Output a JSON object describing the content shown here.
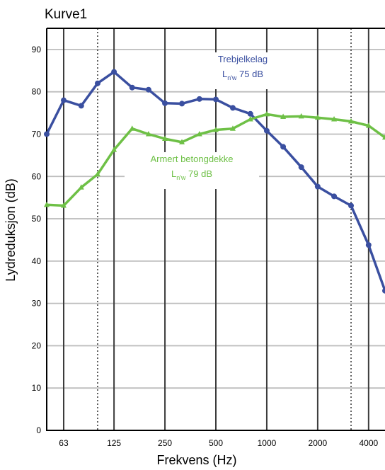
{
  "chart_data": {
    "type": "line",
    "title": "Kurve1",
    "xlabel": "Frekvens (Hz)",
    "ylabel": "Lydreduksjon (dB)",
    "x_scale": "log",
    "xlim": [
      50,
      5000
    ],
    "ylim": [
      0,
      95
    ],
    "grid": true,
    "x_tick_labels": [
      "63",
      "125",
      "250",
      "500",
      "1000",
      "2000",
      "4000"
    ],
    "x_tick_values": [
      63,
      125,
      250,
      500,
      1000,
      2000,
      4000
    ],
    "y_tick_values": [
      0,
      10,
      20,
      30,
      40,
      50,
      60,
      70,
      80,
      90
    ],
    "x": [
      50,
      63,
      80,
      100,
      125,
      160,
      200,
      250,
      315,
      400,
      500,
      630,
      800,
      1000,
      1250,
      1600,
      2000,
      2500,
      3150,
      4000,
      5000
    ],
    "series": [
      {
        "name": "Trebjelkelag",
        "color": "#3a4fa0",
        "marker": "circle",
        "values": [
          70,
          78,
          76.7,
          82,
          84.7,
          81,
          80.5,
          77.3,
          77.2,
          78.3,
          78.2,
          76.2,
          74.8,
          70.8,
          67,
          62.2,
          57.6,
          55.3,
          53.1,
          43.8,
          33
        ]
      },
      {
        "name": "Armert betongdekke",
        "color": "#6ec046",
        "marker": "triangle",
        "values": [
          53.3,
          53.1,
          57.4,
          60.5,
          66.3,
          71.3,
          70,
          68.9,
          68.1,
          70,
          71,
          71.3,
          73.5,
          74.7,
          74.1,
          74.2,
          73.9,
          73.5,
          73,
          72,
          69.2
        ]
      }
    ],
    "annotations": [
      {
        "series": 0,
        "label": "Trebjelkelag",
        "rating_letter": "L",
        "rating_sub": "n'w",
        "rating_value": "75 dB"
      },
      {
        "series": 1,
        "label": "Armert betongdekke",
        "rating_letter": "L",
        "rating_sub": "n'w",
        "rating_value": "79 dB"
      }
    ]
  }
}
